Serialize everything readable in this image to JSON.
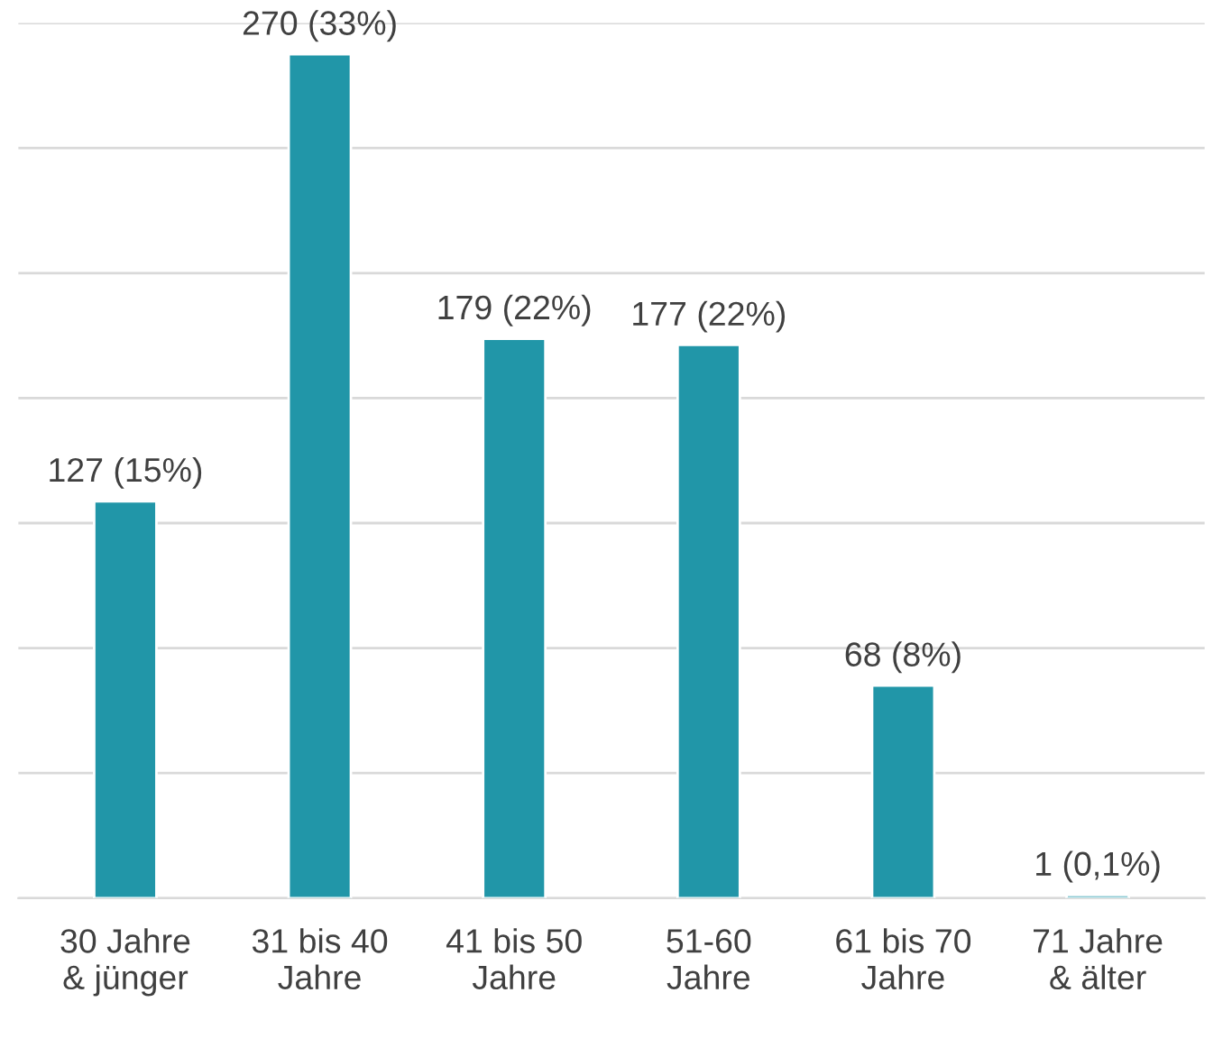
{
  "chart_data": {
    "type": "bar",
    "categories": [
      "30 Jahre\n& jünger",
      "31 bis 40\nJahre",
      "41 bis 50\nJahre",
      "51-60\nJahre",
      "61 bis 70\nJahre",
      "71 Jahre\n& älter"
    ],
    "values": [
      127,
      270,
      179,
      177,
      68,
      1
    ],
    "value_labels": [
      "127 (15%)",
      "270 (33%)",
      "179 (22%)",
      "177 (22%)",
      "68 (8%)",
      "1 (0,1%)"
    ],
    "color": "#2196a8",
    "ylim": [
      0,
      280
    ],
    "yticks": [
      {
        "value": 0,
        "label": null
      },
      {
        "value": 40,
        "label": null
      },
      {
        "value": 80,
        "label": null
      },
      {
        "value": 120,
        "label": null
      },
      {
        "value": 160,
        "label": null
      },
      {
        "value": 200,
        "label": null
      },
      {
        "value": 240,
        "label": null
      },
      {
        "value": 280,
        "label": null
      }
    ],
    "grid": "y",
    "tick_labels": "x"
  }
}
